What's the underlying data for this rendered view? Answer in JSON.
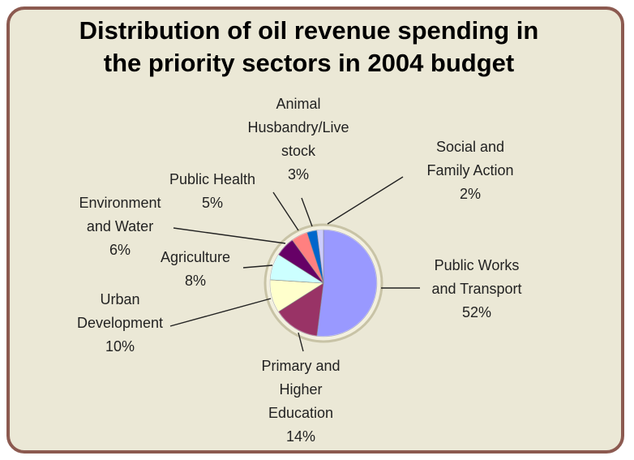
{
  "chart_data": {
    "type": "pie",
    "title_line1": "Distribution of oil revenue spending in",
    "title_line2": "the priority sectors in 2004 budget",
    "slices": [
      {
        "label_lines": [
          "Public Works",
          "and Transport",
          "52%"
        ],
        "value": 52,
        "color": "#9999ff"
      },
      {
        "label_lines": [
          "Primary and",
          "Higher",
          "Education",
          "14%"
        ],
        "value": 14,
        "color": "#993366"
      },
      {
        "label_lines": [
          "Urban",
          "Development",
          "10%"
        ],
        "value": 10,
        "color": "#ffffcc"
      },
      {
        "label_lines": [
          "Agriculture",
          "8%"
        ],
        "value": 8,
        "color": "#ccffff"
      },
      {
        "label_lines": [
          "Environment",
          "and Water",
          "6%"
        ],
        "value": 6,
        "color": "#660066"
      },
      {
        "label_lines": [
          "Public Health",
          "5%"
        ],
        "value": 5,
        "color": "#ff8080"
      },
      {
        "label_lines": [
          "Animal",
          "Husbandry/Live",
          "stock",
          "3%"
        ],
        "value": 3,
        "color": "#0066cc"
      },
      {
        "label_lines": [
          "Social and",
          "Family Action",
          "2%"
        ],
        "value": 2,
        "color": "#ccccff"
      }
    ],
    "legend": "none"
  },
  "colors": {
    "background": "#ebe8d6",
    "border": "#8c5a50",
    "pie_ring": "#c8c3a6",
    "leader": "#222222"
  }
}
